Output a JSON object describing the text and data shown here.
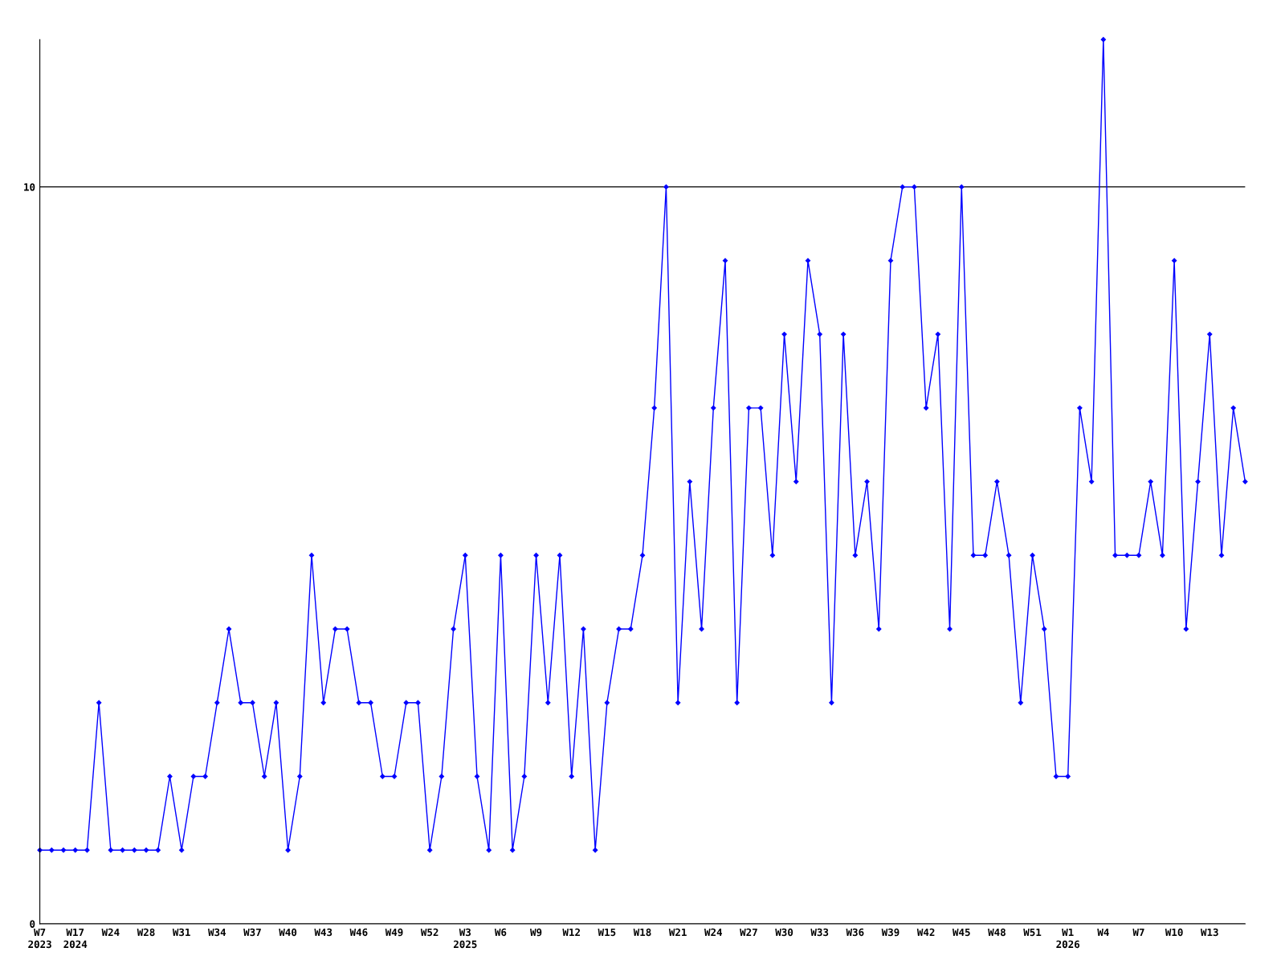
{
  "chart_data": {
    "type": "line",
    "categories": [
      "W7\n2023",
      null,
      null,
      "W17\n2024",
      null,
      null,
      "W24",
      null,
      null,
      "W28",
      null,
      null,
      "W31",
      null,
      null,
      "W34",
      null,
      null,
      "W37",
      null,
      null,
      "W40",
      null,
      null,
      "W43",
      null,
      null,
      "W46",
      null,
      null,
      "W49",
      null,
      null,
      "W52",
      null,
      null,
      "W3\n2025",
      null,
      null,
      "W6",
      null,
      null,
      "W9",
      null,
      null,
      "W12",
      null,
      null,
      "W15",
      null,
      null,
      "W18",
      null,
      null,
      "W21",
      null,
      null,
      "W24",
      null,
      null,
      "W27",
      null,
      null,
      "W30",
      null,
      null,
      "W33",
      null,
      null,
      "W36",
      null,
      null,
      "W39",
      null,
      null,
      "W42",
      null,
      null,
      "W45",
      null,
      null,
      "W48",
      null,
      null,
      "W51",
      null,
      null,
      "W1\n2026",
      null,
      null,
      "W4",
      null,
      null,
      "W7",
      null,
      null,
      "W10",
      null,
      null,
      "W13",
      null,
      null,
      null
    ],
    "series": [
      {
        "color": "#0000ff",
        "values": [
          1,
          1,
          1,
          1,
          1,
          3,
          1,
          1,
          1,
          1,
          1,
          2,
          1,
          2,
          2,
          3,
          4,
          3,
          3,
          2,
          3,
          1,
          2,
          5,
          3,
          4,
          4,
          3,
          3,
          2,
          2,
          3,
          3,
          1,
          2,
          4,
          5,
          2,
          1,
          5,
          1,
          2,
          5,
          3,
          5,
          2,
          4,
          1,
          3,
          4,
          4,
          5,
          7,
          10,
          3,
          6,
          4,
          7,
          9,
          3,
          7,
          7,
          5,
          8,
          6,
          9,
          8,
          3,
          8,
          5,
          6,
          4,
          9,
          10,
          10,
          7,
          8,
          4,
          10,
          5,
          5,
          6,
          5,
          3,
          5,
          4,
          2,
          2,
          7,
          6,
          12,
          5,
          5,
          5,
          6,
          5,
          9,
          4,
          6,
          8,
          5,
          7,
          6
        ]
      }
    ],
    "ylim": [
      0,
      12
    ],
    "yticks": [
      0,
      10
    ],
    "grid": "y",
    "marker": "diamond",
    "line_style": "solid",
    "legend": false
  }
}
